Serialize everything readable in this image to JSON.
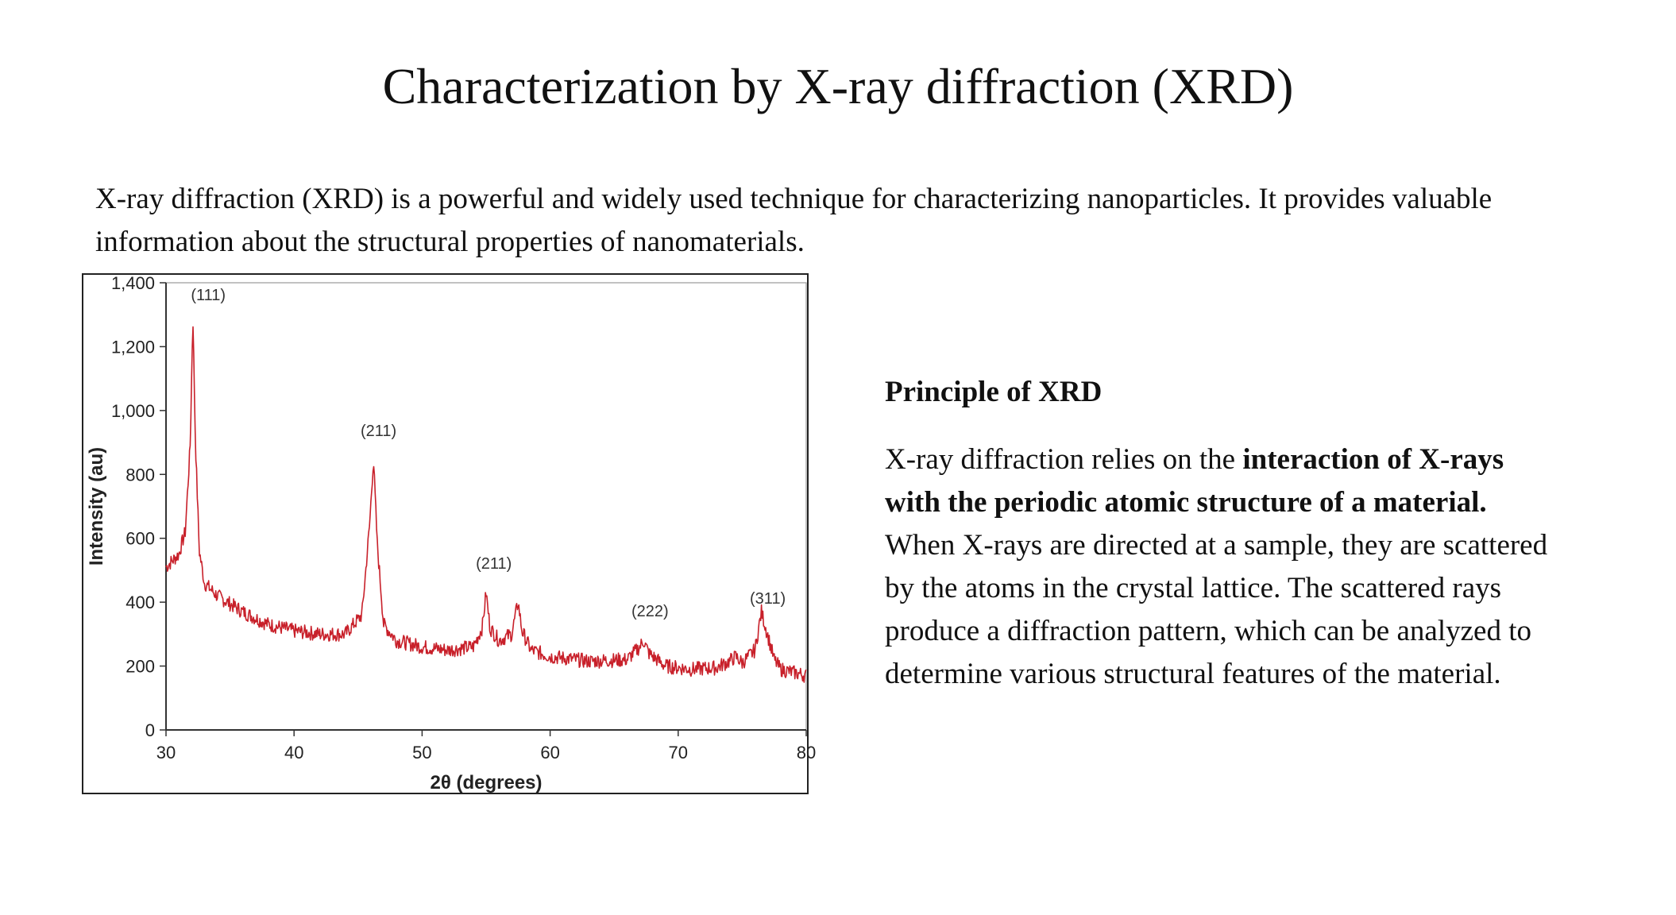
{
  "slide": {
    "title": "Characterization by X-ray diffraction (XRD)",
    "intro": "X-ray diffraction (XRD) is a powerful and widely used technique for characterizing nanoparticles. It provides valuable information about the structural properties of nanomaterials."
  },
  "principle": {
    "heading": "Principle of XRD",
    "text_before": "X-ray diffraction relies on the ",
    "text_bold": "interaction of X-rays with the periodic atomic structure of a material.",
    "text_after": " When X-rays are directed at a sample, they are scattered by the atoms in the crystal lattice. The scattered rays produce a diffraction pattern, which can be analyzed to determine various structural features of the material."
  },
  "colors": {
    "line": "#c8202a",
    "axis": "#333333",
    "text": "#111111"
  },
  "chart_data": {
    "type": "line",
    "xlabel": "2θ (degrees)",
    "ylabel": "Intensity (au)",
    "xlim": [
      30,
      80
    ],
    "ylim": [
      0,
      1400
    ],
    "x_ticks": [
      30,
      40,
      50,
      60,
      70,
      80
    ],
    "y_ticks": [
      0,
      200,
      400,
      600,
      800,
      1000,
      1200,
      1400
    ],
    "y_tick_labels": [
      "0",
      "200",
      "400",
      "600",
      "800",
      "1,000",
      "1,200",
      "1,400"
    ],
    "grid": false,
    "series": [
      {
        "x": [
          30,
          31,
          31.5,
          31.9,
          32.1,
          32.3,
          32.6,
          33,
          34,
          36,
          38,
          40,
          42,
          44,
          45.3,
          45.9,
          46.2,
          46.5,
          47,
          48,
          50,
          52,
          54,
          54.7,
          55,
          55.3,
          56,
          57,
          57.5,
          57.8,
          58.5,
          60,
          63,
          66,
          67,
          67.3,
          67.7,
          69,
          71,
          73,
          74,
          74.5,
          75,
          76,
          76.5,
          76.9,
          77.5,
          78,
          80
        ],
        "y": [
          510,
          550,
          620,
          900,
          1300,
          900,
          560,
          460,
          420,
          370,
          330,
          310,
          300,
          300,
          360,
          640,
          850,
          580,
          330,
          280,
          260,
          250,
          260,
          320,
          430,
          320,
          280,
          300,
          400,
          310,
          250,
          230,
          215,
          220,
          260,
          280,
          240,
          200,
          190,
          195,
          215,
          230,
          210,
          250,
          370,
          310,
          220,
          190,
          170
        ]
      }
    ],
    "annotations": [
      {
        "text": "(111)",
        "x": 33.3,
        "y": 1345
      },
      {
        "text": "(211)",
        "x": 46.6,
        "y": 920
      },
      {
        "text": "(211)",
        "x": 55.6,
        "y": 505
      },
      {
        "text": "(222)",
        "x": 67.8,
        "y": 355
      },
      {
        "text": "(311)",
        "x": 77.0,
        "y": 395
      }
    ]
  }
}
